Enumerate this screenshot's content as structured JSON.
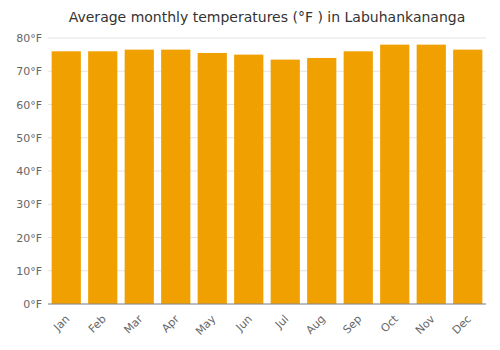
{
  "chart_data": {
    "type": "bar",
    "title": "Average monthly temperatures (°F ) in Labuhankananga",
    "categories": [
      "Jan",
      "Feb",
      "Mar",
      "Apr",
      "May",
      "Jun",
      "Jul",
      "Aug",
      "Sep",
      "Oct",
      "Nov",
      "Dec"
    ],
    "values": [
      76,
      76,
      76.5,
      76.5,
      75.5,
      75,
      73.5,
      74,
      76,
      78,
      78,
      76.5
    ],
    "color": "#f0a000",
    "ylim": [
      0,
      80
    ],
    "yticks": [
      {
        "value": 0,
        "label": "0°F"
      },
      {
        "value": 10,
        "label": "10°F"
      },
      {
        "value": 20,
        "label": "20°F"
      },
      {
        "value": 30,
        "label": "30°F"
      },
      {
        "value": 40,
        "label": "40°F"
      },
      {
        "value": 50,
        "label": "50°F"
      },
      {
        "value": 60,
        "label": "60°F"
      },
      {
        "value": 70,
        "label": "70°F"
      },
      {
        "value": 80,
        "label": "80°F"
      }
    ],
    "grid": true
  }
}
